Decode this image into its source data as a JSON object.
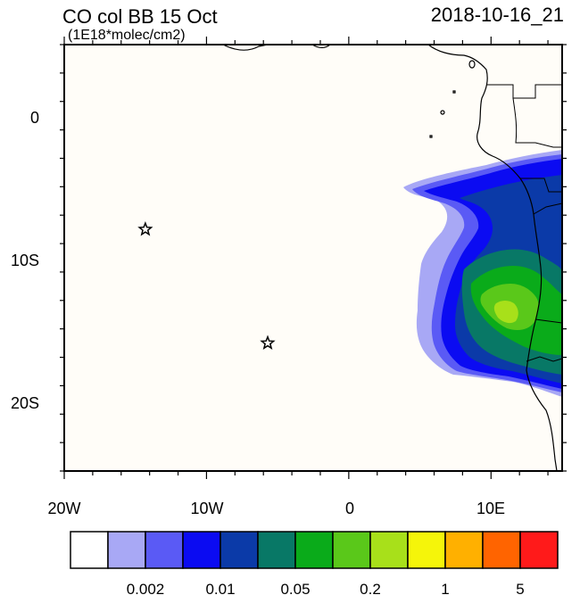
{
  "header": {
    "title": "CO col BB 15 Oct",
    "units": "(1E18*molec/cm2)",
    "timestamp": "2018-10-16_21"
  },
  "map": {
    "lon_range": [
      -20,
      15
    ],
    "lat_range": [
      -25,
      5
    ],
    "lon_tick_labels": [
      "20W",
      "10W",
      "0",
      "10E"
    ],
    "lat_tick_labels": [
      "0",
      "10S",
      "20S"
    ],
    "background_color": "#fffdf8",
    "land_outline_color": "#000000",
    "markers": [
      {
        "symbol": "star",
        "lon": -14.3,
        "lat": -8.0
      },
      {
        "symbol": "star",
        "lon": -5.7,
        "lat": -16.0
      }
    ]
  },
  "colorbar": {
    "colors": [
      "#ffffff",
      "#a8a8f5",
      "#5a5af5",
      "#0b0bf2",
      "#0b3aa8",
      "#087866",
      "#0aab1a",
      "#5ac81a",
      "#a8e01a",
      "#f5f50a",
      "#ffb000",
      "#ff6400",
      "#ff1a1a"
    ],
    "labels": [
      "0.002",
      "0.01",
      "0.05",
      "0.2",
      "1",
      "5"
    ]
  }
}
